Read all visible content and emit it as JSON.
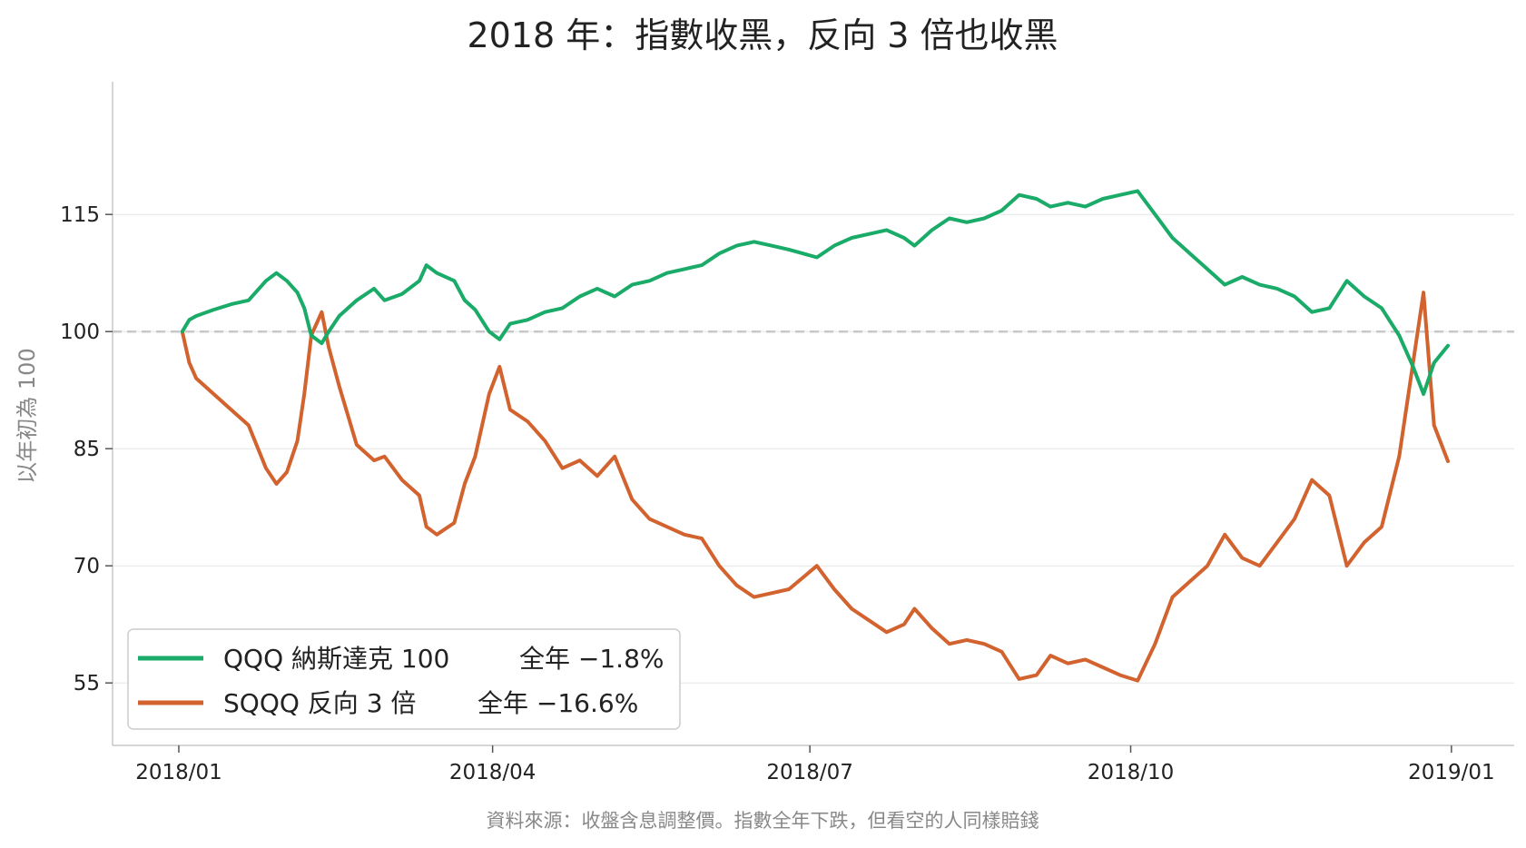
{
  "chart_data": {
    "type": "line",
    "title": "2018 年：指數收黑，反向 3 倍也收黑",
    "xlabel": "",
    "ylabel": "以年初為 100",
    "source_note": "資料來源：收盤含息調整價。指數全年下跌，但看空的人同樣賠錢",
    "x_ticks": [
      "2018/01",
      "2018/04",
      "2018/07",
      "2018/10",
      "2019/01"
    ],
    "y_ticks": [
      55,
      70,
      85,
      100,
      115
    ],
    "xlim": [
      "2017-12-13",
      "2019-01-19"
    ],
    "ylim": [
      47,
      132
    ],
    "baseline": 100,
    "grid": "horizontal",
    "legend_position": "bottom-left",
    "series": [
      {
        "name": "QQQ 納斯達克 100",
        "annotation": "全年 −1.8%",
        "color": "#1aab68",
        "points": [
          [
            "2018-01-02",
            100
          ],
          [
            "2018-01-04",
            101.5
          ],
          [
            "2018-01-06",
            102
          ],
          [
            "2018-01-11",
            102.8
          ],
          [
            "2018-01-16",
            103.5
          ],
          [
            "2018-01-21",
            104
          ],
          [
            "2018-01-26",
            106.5
          ],
          [
            "2018-01-29",
            107.5
          ],
          [
            "2018-02-01",
            106.5
          ],
          [
            "2018-02-04",
            105
          ],
          [
            "2018-02-06",
            103
          ],
          [
            "2018-02-08",
            99.5
          ],
          [
            "2018-02-11",
            98.5
          ],
          [
            "2018-02-13",
            100
          ],
          [
            "2018-02-16",
            102
          ],
          [
            "2018-02-21",
            104
          ],
          [
            "2018-02-26",
            105.5
          ],
          [
            "2018-03-01",
            104
          ],
          [
            "2018-03-06",
            104.8
          ],
          [
            "2018-03-11",
            106.5
          ],
          [
            "2018-03-13",
            108.5
          ],
          [
            "2018-03-16",
            107.5
          ],
          [
            "2018-03-21",
            106.5
          ],
          [
            "2018-03-24",
            104
          ],
          [
            "2018-03-27",
            102.8
          ],
          [
            "2018-03-31",
            100
          ],
          [
            "2018-04-03",
            99
          ],
          [
            "2018-04-06",
            101
          ],
          [
            "2018-04-11",
            101.5
          ],
          [
            "2018-04-16",
            102.5
          ],
          [
            "2018-04-21",
            103
          ],
          [
            "2018-04-26",
            104.5
          ],
          [
            "2018-05-01",
            105.5
          ],
          [
            "2018-05-06",
            104.5
          ],
          [
            "2018-05-11",
            106
          ],
          [
            "2018-05-16",
            106.5
          ],
          [
            "2018-05-21",
            107.5
          ],
          [
            "2018-05-26",
            108
          ],
          [
            "2018-05-31",
            108.5
          ],
          [
            "2018-06-05",
            110
          ],
          [
            "2018-06-10",
            111
          ],
          [
            "2018-06-15",
            111.5
          ],
          [
            "2018-06-20",
            111
          ],
          [
            "2018-06-25",
            110.5
          ],
          [
            "2018-06-29",
            110
          ],
          [
            "2018-07-03",
            109.5
          ],
          [
            "2018-07-08",
            111
          ],
          [
            "2018-07-13",
            112
          ],
          [
            "2018-07-18",
            112.5
          ],
          [
            "2018-07-23",
            113
          ],
          [
            "2018-07-28",
            112
          ],
          [
            "2018-07-31",
            111
          ],
          [
            "2018-08-05",
            113
          ],
          [
            "2018-08-10",
            114.5
          ],
          [
            "2018-08-15",
            114
          ],
          [
            "2018-08-20",
            114.5
          ],
          [
            "2018-08-25",
            115.5
          ],
          [
            "2018-08-30",
            117.5
          ],
          [
            "2018-09-04",
            117
          ],
          [
            "2018-09-08",
            116
          ],
          [
            "2018-09-13",
            116.5
          ],
          [
            "2018-09-18",
            116
          ],
          [
            "2018-09-23",
            117
          ],
          [
            "2018-09-28",
            117.5
          ],
          [
            "2018-10-03",
            118
          ],
          [
            "2018-10-08",
            115
          ],
          [
            "2018-10-13",
            112
          ],
          [
            "2018-10-18",
            110
          ],
          [
            "2018-10-23",
            108
          ],
          [
            "2018-10-28",
            106
          ],
          [
            "2018-11-02",
            107
          ],
          [
            "2018-11-07",
            106
          ],
          [
            "2018-11-12",
            105.5
          ],
          [
            "2018-11-17",
            104.5
          ],
          [
            "2018-11-22",
            102.5
          ],
          [
            "2018-11-27",
            103
          ],
          [
            "2018-12-02",
            106.5
          ],
          [
            "2018-12-07",
            104.5
          ],
          [
            "2018-12-12",
            103
          ],
          [
            "2018-12-17",
            99.5
          ],
          [
            "2018-12-21",
            95.5
          ],
          [
            "2018-12-24",
            92
          ],
          [
            "2018-12-27",
            96
          ],
          [
            "2018-12-31",
            98.2
          ]
        ]
      },
      {
        "name": "SQQQ 反向 3 倍",
        "annotation": "全年 −16.6%",
        "color": "#d2622e",
        "points": [
          [
            "2018-01-02",
            100
          ],
          [
            "2018-01-04",
            96
          ],
          [
            "2018-01-06",
            94
          ],
          [
            "2018-01-11",
            92
          ],
          [
            "2018-01-16",
            90
          ],
          [
            "2018-01-21",
            88
          ],
          [
            "2018-01-26",
            82.5
          ],
          [
            "2018-01-29",
            80.5
          ],
          [
            "2018-02-01",
            82
          ],
          [
            "2018-02-04",
            86
          ],
          [
            "2018-02-06",
            92
          ],
          [
            "2018-02-08",
            99.5
          ],
          [
            "2018-02-11",
            102.5
          ],
          [
            "2018-02-13",
            98
          ],
          [
            "2018-02-16",
            93
          ],
          [
            "2018-02-21",
            85.5
          ],
          [
            "2018-02-26",
            83.5
          ],
          [
            "2018-03-01",
            84
          ],
          [
            "2018-03-06",
            81
          ],
          [
            "2018-03-11",
            79
          ],
          [
            "2018-03-13",
            75
          ],
          [
            "2018-03-16",
            74
          ],
          [
            "2018-03-21",
            75.5
          ],
          [
            "2018-03-24",
            80.5
          ],
          [
            "2018-03-27",
            84
          ],
          [
            "2018-03-31",
            92
          ],
          [
            "2018-04-03",
            95.5
          ],
          [
            "2018-04-06",
            90
          ],
          [
            "2018-04-11",
            88.5
          ],
          [
            "2018-04-16",
            86
          ],
          [
            "2018-04-21",
            82.5
          ],
          [
            "2018-04-26",
            83.5
          ],
          [
            "2018-05-01",
            81.5
          ],
          [
            "2018-05-06",
            84
          ],
          [
            "2018-05-11",
            78.5
          ],
          [
            "2018-05-16",
            76
          ],
          [
            "2018-05-21",
            75
          ],
          [
            "2018-05-26",
            74
          ],
          [
            "2018-05-31",
            73.5
          ],
          [
            "2018-06-05",
            70
          ],
          [
            "2018-06-10",
            67.5
          ],
          [
            "2018-06-15",
            66
          ],
          [
            "2018-06-20",
            66.5
          ],
          [
            "2018-06-25",
            67
          ],
          [
            "2018-06-29",
            68.5
          ],
          [
            "2018-07-03",
            70
          ],
          [
            "2018-07-08",
            67
          ],
          [
            "2018-07-13",
            64.5
          ],
          [
            "2018-07-18",
            63
          ],
          [
            "2018-07-23",
            61.5
          ],
          [
            "2018-07-28",
            62.5
          ],
          [
            "2018-07-31",
            64.5
          ],
          [
            "2018-08-05",
            62
          ],
          [
            "2018-08-10",
            60
          ],
          [
            "2018-08-15",
            60.5
          ],
          [
            "2018-08-20",
            60
          ],
          [
            "2018-08-25",
            59
          ],
          [
            "2018-08-30",
            55.5
          ],
          [
            "2018-09-04",
            56
          ],
          [
            "2018-09-08",
            58.5
          ],
          [
            "2018-09-13",
            57.5
          ],
          [
            "2018-09-18",
            58
          ],
          [
            "2018-09-23",
            57
          ],
          [
            "2018-09-28",
            56
          ],
          [
            "2018-10-03",
            55.3
          ],
          [
            "2018-10-08",
            60
          ],
          [
            "2018-10-13",
            66
          ],
          [
            "2018-10-18",
            68
          ],
          [
            "2018-10-23",
            70
          ],
          [
            "2018-10-28",
            74
          ],
          [
            "2018-11-02",
            71
          ],
          [
            "2018-11-07",
            70
          ],
          [
            "2018-11-12",
            73
          ],
          [
            "2018-11-17",
            76
          ],
          [
            "2018-11-22",
            81
          ],
          [
            "2018-11-27",
            79
          ],
          [
            "2018-12-02",
            70
          ],
          [
            "2018-12-07",
            73
          ],
          [
            "2018-12-12",
            75
          ],
          [
            "2018-12-17",
            84
          ],
          [
            "2018-12-21",
            96
          ],
          [
            "2018-12-24",
            105
          ],
          [
            "2018-12-27",
            88
          ],
          [
            "2018-12-31",
            83.4
          ]
        ]
      }
    ]
  }
}
